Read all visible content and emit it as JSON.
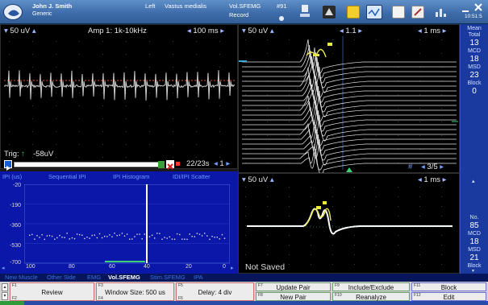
{
  "header": {
    "patient_name": "John J. Smith",
    "patient_type": "Generic",
    "side": "Left",
    "muscle": "Vastus medialis",
    "test_name": "Vol.SFEMG",
    "state": "Record",
    "number": "#91",
    "clock": "10:51:5"
  },
  "emg_panel": {
    "sensitivity": "50 uV",
    "amp": "Amp 1: 1k-10kHz",
    "sweep": "100 ms",
    "trigger_label": "Trig:",
    "trigger_value": "-58uV",
    "count": "22/23s",
    "page": "1"
  },
  "superimposed_panel": {
    "sensitivity": "50 uV",
    "gain": "1.1",
    "sweep": "1 ms",
    "page": "3/5",
    "hash": "#"
  },
  "averaged_panel": {
    "sensitivity": "50 uV",
    "sweep": "1 ms",
    "status": "Not Saved"
  },
  "ipi_panel": {
    "tabs": [
      "IPI (us)",
      "Sequential IPI",
      "IPI Histogram",
      "IDI/IPI Scatter"
    ],
    "y_ticks": [
      "-20",
      "-190",
      "-360",
      "-530",
      "-700"
    ],
    "x_ticks": [
      "100",
      "80",
      "60",
      "40",
      "20",
      "0"
    ]
  },
  "sidebar_top": {
    "mean_label": "Mean",
    "total_label": "Total",
    "total_value": "13",
    "mcd_label": "MCD",
    "mcd_value": "18",
    "msd_label": "MSD",
    "msd_value": "23",
    "blocking_label": "Block",
    "blocking_value": "0"
  },
  "sidebar_bottom": {
    "no_label": "No.",
    "no_value": "85",
    "mcd_label": "MCD",
    "mcd_value": "18",
    "msd_label": "MSD",
    "msd_value": "21",
    "blocking_label": "Block"
  },
  "bottom_tabs": [
    "New Muscle",
    "Other Side",
    "EMG",
    "Vol.SFEMG",
    "Stim.SFEMG",
    "IPA"
  ],
  "function_keys": {
    "f1_num": "F1",
    "f1": "Review",
    "f2_num": "F2",
    "f3_num": "F3",
    "f3": "Window Size: 500 us",
    "f4_num": "F4",
    "f5_num": "F5",
    "f5": "Delay: 4 div",
    "f6_num": "F6",
    "f7_num": "F7",
    "f7": "Update Pair",
    "f8_num": "F8",
    "f8": "New Pair",
    "f9_num": "F9",
    "f9": "Include/Exclude",
    "f10_num": "F10",
    "f10": "Reanalyze",
    "f11_num": "F11",
    "f11": "Block",
    "f12_num": "F12",
    "f12": "Edit"
  },
  "colors": {
    "header_blue": "#4a7abc",
    "ipi_background": "#0a17a8",
    "trace_white": "#ffffff",
    "trace_yellow": "#e8e84a",
    "cursor_green": "#3ad17a",
    "trigger_red": "#ff3a2a",
    "tab_active": "#ffffff",
    "tab_inactive": "#3a6fe0"
  },
  "icons": [
    "logo-icon",
    "headset-icon",
    "recorder-icon",
    "cuff-icon",
    "folder-icon",
    "monitor-icon",
    "report-icon",
    "edit-icon",
    "chart-icon",
    "minimize-icon",
    "close-icon",
    "play-icon",
    "trash-icon",
    "arrow-left-icon",
    "arrow-right-icon",
    "arrow-up-icon",
    "arrow-down-icon"
  ]
}
